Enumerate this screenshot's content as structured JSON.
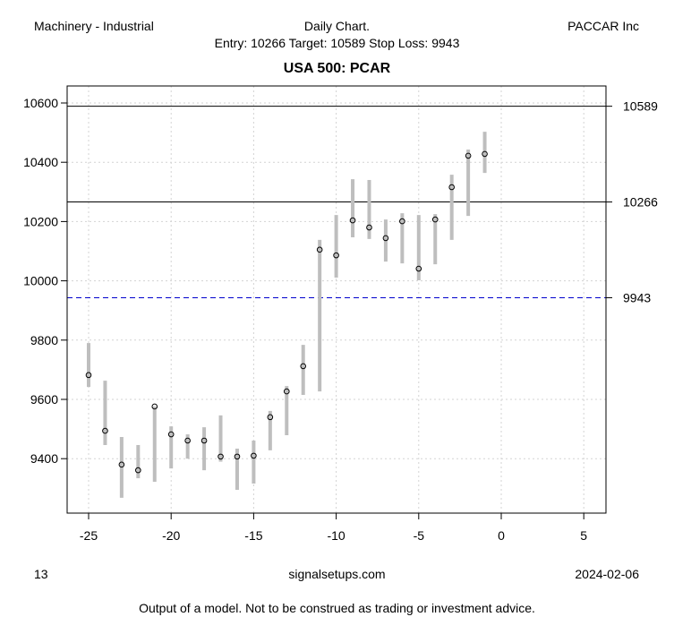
{
  "header": {
    "sector": "Machinery - Industrial",
    "chart_type": "Daily Chart.",
    "levels_line": "Entry: 10266 Target: 10589 Stop Loss: 9943",
    "company": "PACCAR Inc"
  },
  "footer": {
    "left": "13",
    "center": "signalsetups.com",
    "date": "2024-02-06",
    "disclaimer": "Output of a model. Not to be construed as trading or investment advice."
  },
  "colors": {
    "bar": "#bebebe",
    "grid": "#d3d3d3",
    "stop": "#0000cd",
    "line": "#000000"
  },
  "chart_data": {
    "type": "range",
    "title": "USA 500: PCAR",
    "xlim": [
      -26.3,
      6.3
    ],
    "ylim": [
      9230,
      10660
    ],
    "xticks": [
      -25,
      -20,
      -15,
      -10,
      -5,
      0,
      5
    ],
    "yticks": [
      9400,
      9600,
      9800,
      10000,
      10200,
      10400,
      10600
    ],
    "hlines": [
      {
        "name": "target",
        "value": 10589,
        "label": "10589",
        "style": "solid"
      },
      {
        "name": "entry",
        "value": 10266,
        "label": "10266",
        "style": "solid"
      },
      {
        "name": "stop-loss",
        "value": 9943,
        "label": "9943",
        "style": "dashed"
      }
    ],
    "x": [
      -25,
      -24,
      -23,
      -22,
      -21,
      -20,
      -19,
      -18,
      -17,
      -16,
      -15,
      -14,
      -13,
      -12,
      -11,
      -10,
      -9,
      -8,
      -7,
      -6,
      -5,
      -4,
      -3,
      -2,
      -1
    ],
    "close": [
      9682,
      9494,
      9380,
      9361,
      9576,
      9482,
      9461,
      9461,
      9407,
      9407,
      9410,
      9540,
      9627,
      9712,
      10105,
      10086,
      10204,
      10180,
      10144,
      10201,
      10041,
      10207,
      10316,
      10422,
      10428
    ],
    "high": [
      9790,
      9663,
      9473,
      9446,
      9576,
      9509,
      9482,
      9506,
      9546,
      9434,
      9461,
      9561,
      9645,
      9784,
      10138,
      10222,
      10343,
      10340,
      10207,
      10228,
      10222,
      10225,
      10358,
      10443,
      10503
    ],
    "low": [
      9642,
      9446,
      9268,
      9334,
      9322,
      9367,
      9400,
      9361,
      9390,
      9295,
      9316,
      9428,
      9479,
      9615,
      9627,
      10011,
      10147,
      10141,
      10065,
      10059,
      10002,
      10056,
      10138,
      10219,
      10364
    ]
  }
}
